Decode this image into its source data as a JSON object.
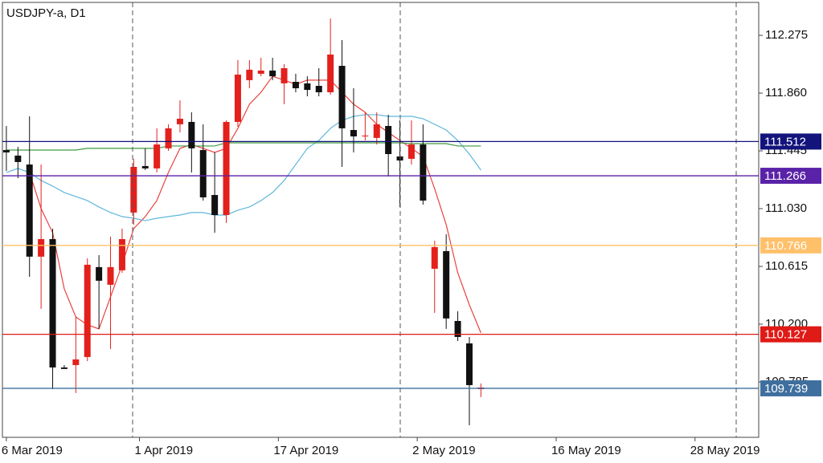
{
  "chart_data": {
    "type": "candlestick",
    "title": "USDJPY-a, D1",
    "x": [
      0,
      1,
      2,
      3,
      4,
      5,
      6,
      7,
      8,
      9,
      10,
      11,
      12,
      13,
      14,
      15,
      16,
      17,
      18,
      19,
      20,
      21,
      22,
      23,
      24,
      25,
      26,
      27,
      28,
      29,
      30,
      31,
      32,
      33,
      34,
      35,
      36,
      37,
      38,
      39,
      40,
      41
    ],
    "open": [
      111.451,
      111.411,
      111.347,
      110.685,
      110.811,
      109.889,
      109.906,
      109.964,
      110.61,
      110.483,
      110.587,
      111.002,
      111.336,
      111.319,
      111.463,
      111.636,
      111.653,
      111.451,
      111.128,
      110.984,
      111.653,
      111.953,
      111.999,
      112.022,
      111.93,
      111.941,
      111.93,
      111.912,
      111.866,
      112.056,
      111.595,
      111.549,
      111.538,
      111.624,
      111.405,
      111.388,
      111.491,
      110.598,
      110.725,
      110.223,
      110.062,
      109.733
    ],
    "high": [
      111.624,
      111.474,
      111.693,
      111.347,
      110.886,
      109.906,
      110.252,
      110.673,
      110.696,
      110.829,
      110.886,
      111.388,
      111.463,
      111.607,
      111.636,
      111.808,
      111.722,
      111.636,
      111.434,
      111.664,
      112.097,
      112.097,
      112.114,
      112.114,
      112.068,
      111.999,
      111.981,
      112.039,
      112.396,
      112.241,
      111.895,
      111.722,
      111.722,
      111.705,
      111.664,
      111.664,
      111.636,
      110.8,
      110.846,
      110.293,
      110.108,
      109.774
    ],
    "low": [
      111.301,
      111.249,
      110.54,
      110.31,
      109.733,
      109.878,
      109.705,
      109.935,
      110.166,
      110.022,
      110.569,
      110.915,
      111.307,
      111.29,
      111.445,
      111.578,
      111.29,
      111.088,
      110.857,
      110.927,
      111.618,
      111.895,
      111.981,
      111.953,
      111.78,
      111.866,
      111.837,
      111.837,
      111.849,
      111.33,
      111.434,
      111.52,
      111.491,
      111.261,
      111.042,
      111.347,
      111.059,
      110.281,
      110.166,
      110.079,
      109.474,
      109.676
    ],
    "close": [
      111.434,
      111.365,
      110.685,
      110.811,
      109.889,
      109.878,
      109.947,
      110.627,
      110.512,
      110.61,
      110.811,
      111.33,
      111.319,
      111.491,
      111.607,
      111.676,
      111.463,
      111.111,
      110.984,
      111.653,
      111.993,
      112.028,
      112.022,
      111.981,
      112.039,
      111.895,
      111.883,
      111.866,
      112.137,
      111.607,
      111.549,
      111.555,
      111.636,
      111.422,
      111.376,
      111.491,
      111.088,
      110.754,
      110.241,
      110.108,
      109.762,
      109.745
    ],
    "up_color": "#e3201c",
    "down_color": "#111111",
    "overlays": [
      {
        "color": "#e8433f",
        "values": [
          null,
          null,
          111.29,
          111.03,
          110.857,
          110.454,
          110.252,
          110.195,
          110.166,
          110.396,
          110.627,
          110.886,
          110.973,
          111.088,
          111.29,
          111.463,
          111.491,
          111.463,
          111.434,
          111.463,
          111.607,
          111.78,
          111.866,
          111.981,
          111.953,
          111.924,
          111.953,
          111.953,
          111.953,
          111.866,
          111.78,
          111.722,
          111.636,
          111.578,
          111.52,
          111.463,
          111.405,
          111.174,
          110.915,
          110.569,
          110.339,
          110.137
        ]
      },
      {
        "color": "#5fb7dc",
        "values": [
          111.29,
          111.319,
          111.29,
          111.232,
          111.192,
          111.146,
          111.117,
          111.088,
          111.042,
          111.002,
          110.973,
          110.961,
          110.944,
          110.961,
          110.973,
          110.984,
          111.002,
          111.002,
          110.984,
          110.984,
          111.019,
          111.042,
          111.088,
          111.146,
          111.232,
          111.347,
          111.463,
          111.52,
          111.607,
          111.664,
          111.693,
          111.705,
          111.705,
          111.693,
          111.693,
          111.693,
          111.676,
          111.636,
          111.595,
          111.52,
          111.422,
          111.307
        ]
      },
      {
        "color": "#3e9a3e",
        "values": [
          111.451,
          111.451,
          111.451,
          111.451,
          111.451,
          111.451,
          111.451,
          111.463,
          111.463,
          111.463,
          111.463,
          111.463,
          111.463,
          111.463,
          111.48,
          111.48,
          111.48,
          111.48,
          111.48,
          111.503,
          111.503,
          111.503,
          111.503,
          111.503,
          111.503,
          111.503,
          111.503,
          111.503,
          111.503,
          111.503,
          111.503,
          111.503,
          111.503,
          111.503,
          111.503,
          111.497,
          111.497,
          111.497,
          111.497,
          111.48,
          111.48,
          111.48
        ]
      }
    ],
    "levels": [
      {
        "value": 111.512,
        "color": "#13137c"
      },
      {
        "value": 111.266,
        "color": "#5a22a8"
      },
      {
        "value": 110.766,
        "color": "#ffc06a"
      },
      {
        "value": 110.127,
        "color": "#e01a16"
      },
      {
        "value": 109.739,
        "color": "#3f6f9e"
      }
    ],
    "xlim": [
      -0.55,
      65
    ],
    "xticks": [
      {
        "value": 0,
        "label": "6 Mar 2019"
      },
      {
        "value": 11.5,
        "label": "1 Apr 2019"
      },
      {
        "value": 23.5,
        "label": "17 Apr 2019"
      },
      {
        "value": 35.5,
        "label": "2 May 2019"
      },
      {
        "value": 47.5,
        "label": "16 May 2019"
      },
      {
        "value": 59.5,
        "label": "28 May 2019"
      }
    ],
    "ylim": [
      109.387,
      112.529
    ],
    "yticks": [
      112.275,
      {
        "value": 111.86,
        "label": "111.860"
      },
      111.445,
      {
        "value": 111.03,
        "label": "111.030"
      },
      110.615,
      {
        "value": 110.2,
        "label": "110.200"
      },
      109.785
    ]
  }
}
